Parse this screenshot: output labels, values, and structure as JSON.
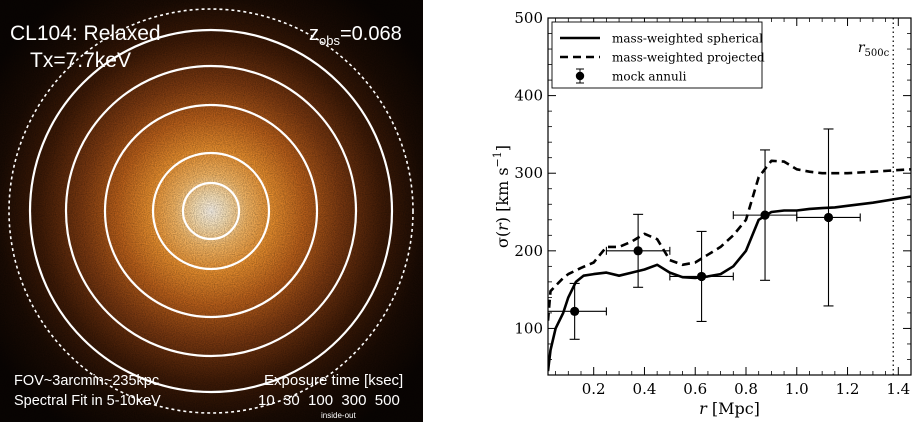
{
  "image": {
    "title_line1": "CL104: Relaxed",
    "title_line2": "Tx=7.7keV",
    "zobs_prefix": "z",
    "zobs_sub": "obs",
    "zobs_value": "=0.068",
    "fov": "FOV~3arcmin~235kpc",
    "spectral_fit": "Spectral Fit in 5-10keV",
    "exposure_title": "Exposure time [ksec]",
    "exposure_values": "10  30  100  300  500",
    "exposure_note": "inside-out",
    "colors": {
      "background": "#000000",
      "core": "#fff6e6",
      "mid": "#f2a040",
      "outer": "#6b3410",
      "ring": "#ffffff"
    }
  },
  "chart_data": {
    "type": "line",
    "xlim": [
      0.02,
      1.45
    ],
    "ylim": [
      40,
      500
    ],
    "xticks": [
      0.2,
      0.4,
      0.6,
      0.8,
      1.0,
      1.2,
      1.4
    ],
    "xtick_labels": [
      "0.2",
      "0.4",
      "0.6",
      "0.8",
      "1.0",
      "1.2",
      "1.4"
    ],
    "yticks": [
      100,
      200,
      300,
      400,
      500
    ],
    "ytick_labels": [
      "100",
      "200",
      "300",
      "400",
      "500"
    ],
    "xlabel_italic": "r",
    "xlabel_unit": " [Mpc]",
    "ylabel_sigma": "σ(",
    "ylabel_r": "r",
    "ylabel_close": ")",
    "ylabel_unit": " [km s",
    "ylabel_exp": "−1",
    "ylabel_end": "]",
    "r500_label": "r",
    "r500_sub": "500c",
    "r500_x": 1.38,
    "legend": {
      "placement": "top-left",
      "items": [
        "mass-weighted spherical",
        "mass-weighted projected",
        "mock annuli"
      ]
    },
    "series": [
      {
        "name": "mass-weighted spherical",
        "style": "solid",
        "x": [
          0.02,
          0.03,
          0.05,
          0.08,
          0.1,
          0.13,
          0.16,
          0.2,
          0.25,
          0.3,
          0.35,
          0.4,
          0.45,
          0.5,
          0.55,
          0.6,
          0.65,
          0.7,
          0.75,
          0.8,
          0.85,
          0.9,
          0.95,
          1.0,
          1.05,
          1.1,
          1.15,
          1.2,
          1.3,
          1.45
        ],
        "y": [
          45,
          72,
          100,
          120,
          140,
          160,
          168,
          170,
          172,
          168,
          172,
          176,
          182,
          172,
          166,
          165,
          167,
          170,
          180,
          200,
          240,
          250,
          252,
          252,
          254,
          255,
          256,
          258,
          262,
          270
        ]
      },
      {
        "name": "mass-weighted projected",
        "style": "dashed",
        "x": [
          0.02,
          0.03,
          0.05,
          0.08,
          0.1,
          0.15,
          0.2,
          0.25,
          0.3,
          0.35,
          0.4,
          0.45,
          0.5,
          0.55,
          0.6,
          0.65,
          0.7,
          0.75,
          0.8,
          0.85,
          0.9,
          0.95,
          1.0,
          1.05,
          1.1,
          1.15,
          1.2,
          1.3,
          1.45
        ],
        "y": [
          110,
          148,
          155,
          165,
          170,
          178,
          185,
          205,
          205,
          212,
          222,
          215,
          188,
          182,
          185,
          195,
          205,
          220,
          240,
          295,
          316,
          315,
          305,
          302,
          300,
          300,
          300,
          302,
          305
        ]
      }
    ],
    "points": {
      "name": "mock annuli",
      "x": [
        0.125,
        0.375,
        0.625,
        0.875,
        1.125
      ],
      "y": [
        122,
        200,
        167,
        246,
        243
      ],
      "xerr": [
        0.125,
        0.125,
        0.125,
        0.125,
        0.125
      ],
      "yerr_low": [
        36,
        47,
        58,
        84,
        114
      ],
      "yerr_high": [
        36,
        47,
        58,
        84,
        114
      ]
    }
  }
}
